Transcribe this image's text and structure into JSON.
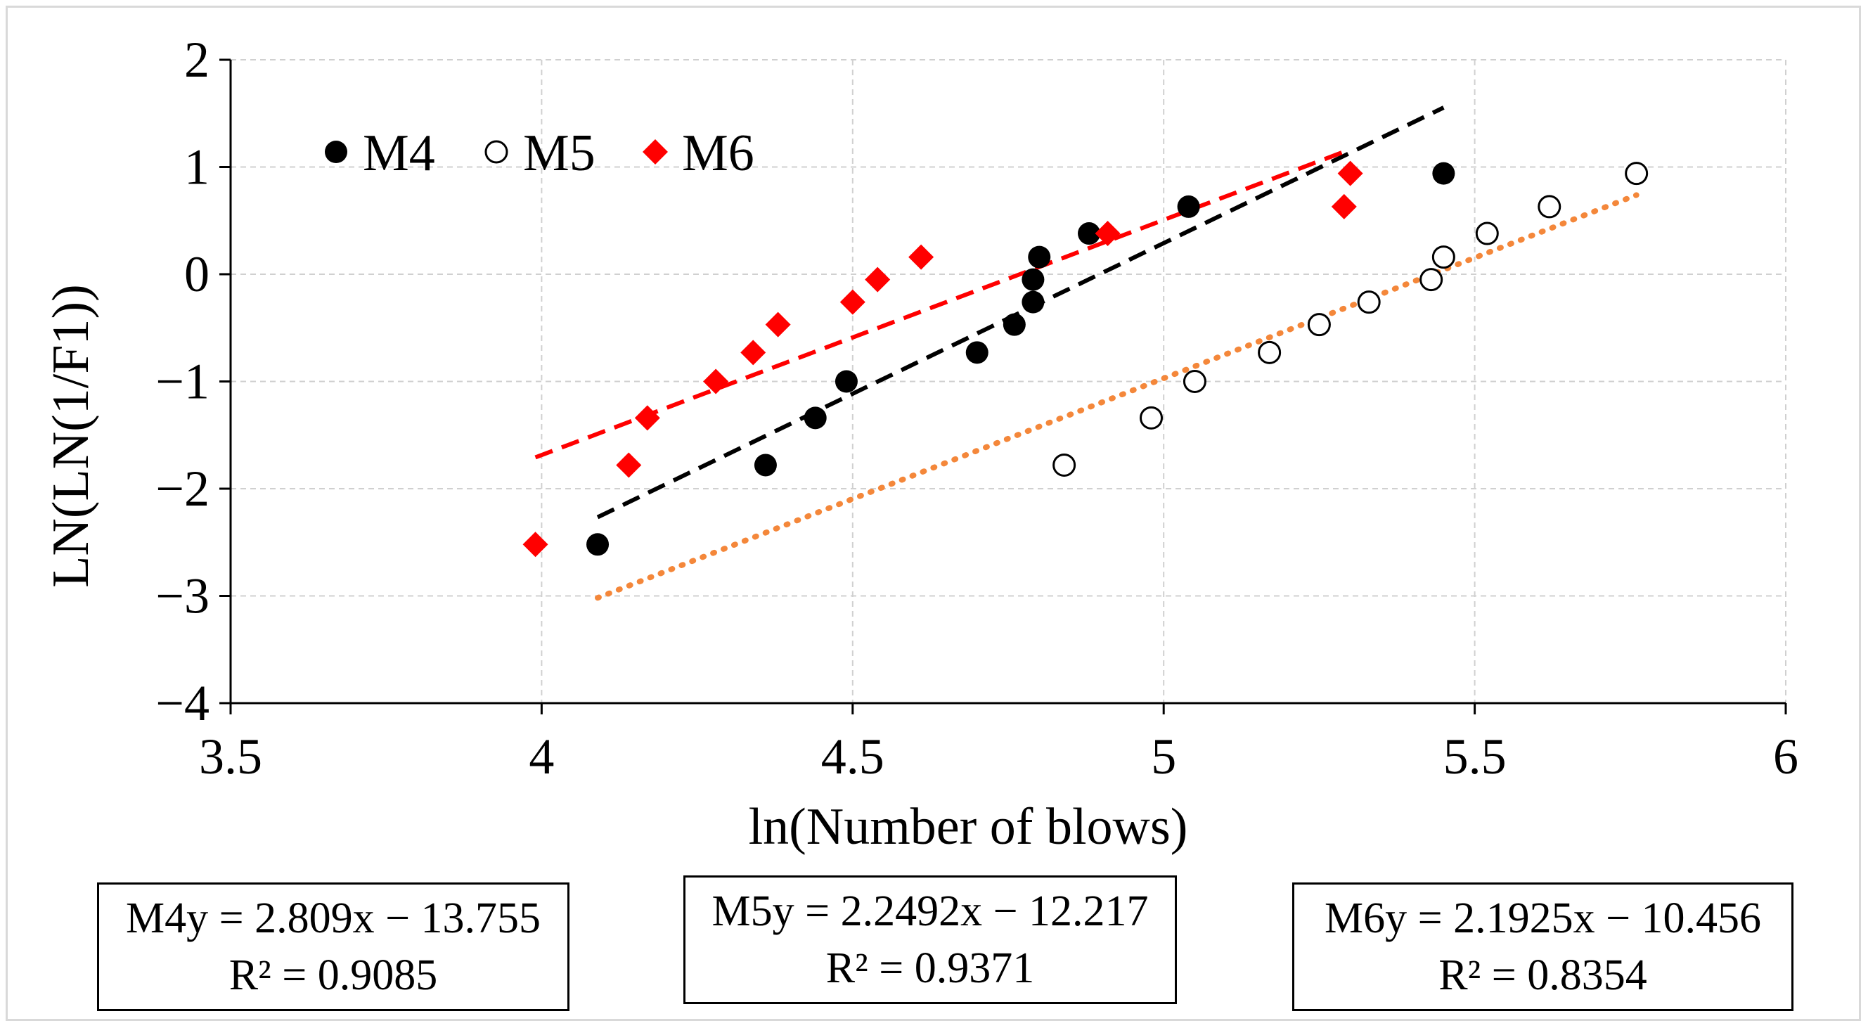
{
  "chart_data": {
    "type": "scatter",
    "xlabel": "ln(Number of blows)",
    "ylabel": "LN(LN(1/F1))",
    "xlim": [
      3.5,
      6
    ],
    "ylim": [
      -4,
      2
    ],
    "x_ticks": [
      "3.5",
      "4",
      "4.5",
      "5",
      "5.5",
      "6"
    ],
    "y_ticks": [
      "2",
      "1",
      "0",
      "−1",
      "−2",
      "−3",
      "−4"
    ],
    "grid": true,
    "legend_position": "top-left",
    "series": [
      {
        "name": "M4",
        "marker": "filled-circle",
        "color": "#000000",
        "points": [
          [
            4.09,
            -2.52
          ],
          [
            4.36,
            -1.78
          ],
          [
            4.44,
            -1.34
          ],
          [
            4.49,
            -1.0
          ],
          [
            4.7,
            -0.73
          ],
          [
            4.76,
            -0.47
          ],
          [
            4.79,
            -0.26
          ],
          [
            4.79,
            -0.05
          ],
          [
            4.8,
            0.16
          ],
          [
            4.88,
            0.38
          ],
          [
            5.04,
            0.63
          ],
          [
            5.45,
            0.94
          ]
        ],
        "trend": {
          "slope": 2.809,
          "intercept": -13.755,
          "x_range": [
            4.09,
            5.45
          ],
          "style": "dashed",
          "color": "#000000"
        }
      },
      {
        "name": "M5",
        "marker": "open-circle",
        "color": "#000000",
        "points": [
          [
            4.84,
            -1.78
          ],
          [
            4.98,
            -1.34
          ],
          [
            5.05,
            -1.0
          ],
          [
            5.17,
            -0.73
          ],
          [
            5.25,
            -0.47
          ],
          [
            5.33,
            -0.26
          ],
          [
            5.43,
            -0.05
          ],
          [
            5.45,
            0.16
          ],
          [
            5.52,
            0.38
          ],
          [
            5.62,
            0.63
          ],
          [
            5.76,
            0.94
          ]
        ],
        "trend": {
          "slope": 2.2492,
          "intercept": -12.217,
          "x_range": [
            4.09,
            5.76
          ],
          "style": "dotted",
          "color": "#f4873a"
        }
      },
      {
        "name": "M6",
        "marker": "diamond",
        "color": "#ff0000",
        "points": [
          [
            3.99,
            -2.52
          ],
          [
            4.14,
            -1.78
          ],
          [
            4.17,
            -1.34
          ],
          [
            4.28,
            -1.0
          ],
          [
            4.34,
            -0.73
          ],
          [
            4.38,
            -0.47
          ],
          [
            4.5,
            -0.26
          ],
          [
            4.54,
            -0.05
          ],
          [
            4.61,
            0.16
          ],
          [
            4.91,
            0.38
          ],
          [
            5.29,
            0.63
          ],
          [
            5.3,
            0.94
          ]
        ],
        "trend": {
          "slope": 2.1925,
          "intercept": -10.456,
          "x_range": [
            3.99,
            5.3
          ],
          "style": "dashed",
          "color": "#ff0000"
        }
      }
    ]
  },
  "equations": [
    {
      "line1": "M4y = 2.809x − 13.755",
      "line2": "R² = 0.9085"
    },
    {
      "line1": "M5y = 2.2492x − 12.217",
      "line2": "R² = 0.9371"
    },
    {
      "line1": "M6y = 2.1925x − 10.456",
      "line2": "R² = 0.8354"
    }
  ]
}
